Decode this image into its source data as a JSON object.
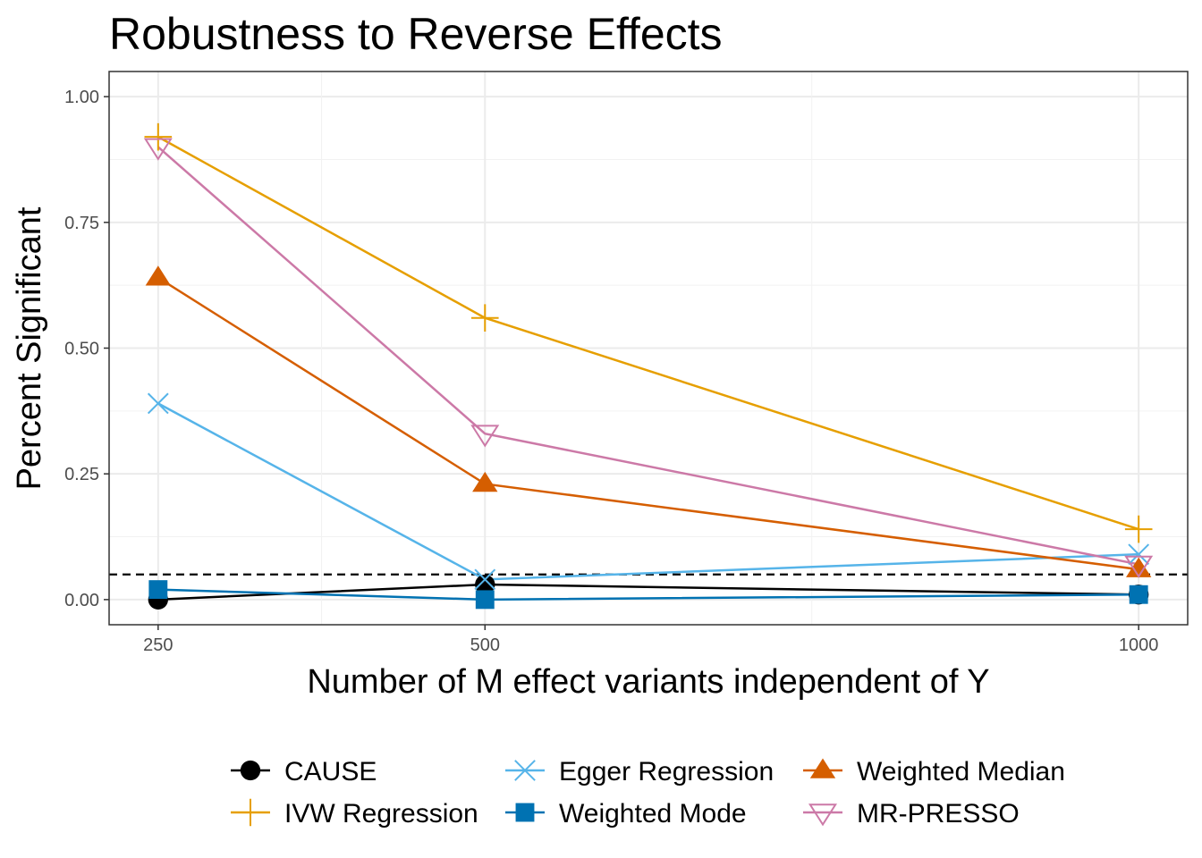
{
  "chart_data": {
    "type": "line",
    "title": "Robustness to Reverse Effects",
    "xlabel": "Number of M effect variants independent of Y",
    "ylabel": "Percent Significant",
    "x": [
      250,
      500,
      1000
    ],
    "xlim": [
      212.5,
      1037.5
    ],
    "ylim": [
      -0.05,
      1.05
    ],
    "x_ticks": [
      250,
      500,
      1000
    ],
    "x_tick_labels": [
      "250",
      "500",
      "1000"
    ],
    "y_ticks": [
      0,
      0.25,
      0.5,
      0.75,
      1.0
    ],
    "y_tick_labels": [
      "0.00",
      "0.25",
      "0.50",
      "0.75",
      "1.00"
    ],
    "reference_line": {
      "y": 0.05,
      "style": "dashed",
      "color": "#000000"
    },
    "grid": true,
    "legend_position": "bottom",
    "series": [
      {
        "name": "CAUSE",
        "color": "#000000",
        "marker": "circle",
        "values": [
          0.0,
          0.03,
          0.01
        ]
      },
      {
        "name": "IVW Regression",
        "color": "#E69F00",
        "marker": "plus",
        "values": [
          0.92,
          0.56,
          0.14
        ]
      },
      {
        "name": "Egger Regression",
        "color": "#56B4E9",
        "marker": "cross",
        "values": [
          0.39,
          0.04,
          0.09
        ]
      },
      {
        "name": "Weighted Mode",
        "color": "#0072B2",
        "marker": "square",
        "values": [
          0.02,
          0.0,
          0.01
        ]
      },
      {
        "name": "Weighted Median",
        "color": "#D55E00",
        "marker": "triangle",
        "values": [
          0.64,
          0.23,
          0.06
        ]
      },
      {
        "name": "MR-PRESSO",
        "color": "#CC79A7",
        "marker": "triangle-down-open",
        "values": [
          0.9,
          0.33,
          0.07
        ]
      }
    ]
  }
}
